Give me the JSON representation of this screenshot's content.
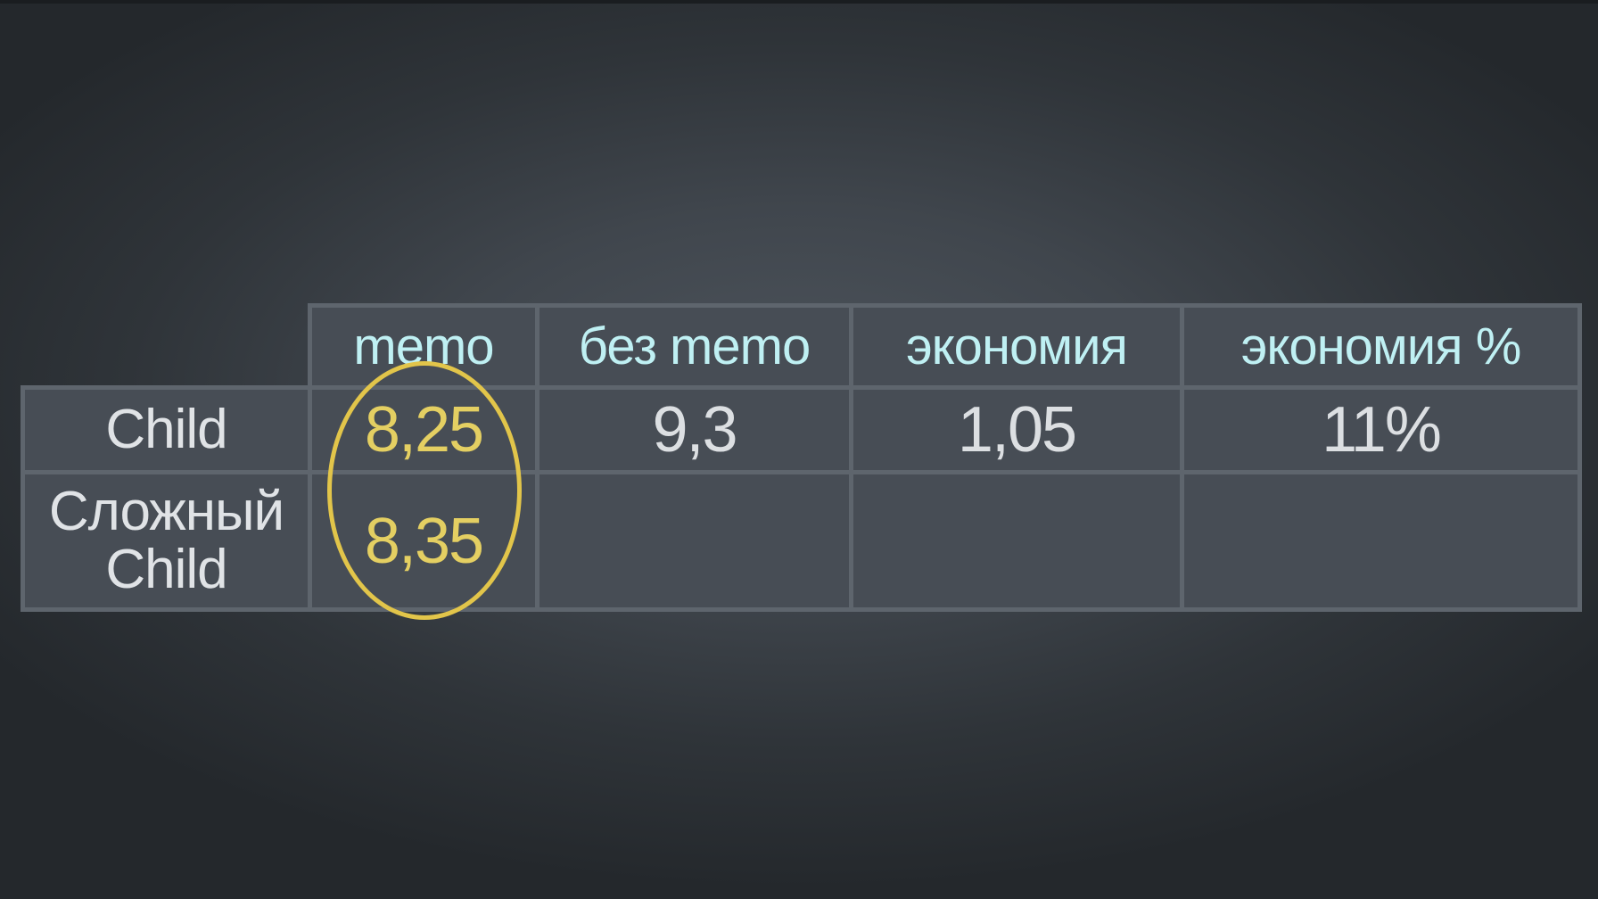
{
  "table": {
    "columns": [
      "memo",
      "без memo",
      "экономия",
      "экономия %"
    ],
    "rows": [
      {
        "label": "Child",
        "cells": [
          "8,25",
          "9,3",
          "1,05",
          "11%"
        ]
      },
      {
        "label": "Сложный Child",
        "cells": [
          "8,35",
          "",
          "",
          ""
        ]
      }
    ]
  },
  "highlight": {
    "column": "memo",
    "color": "#e2c54a"
  },
  "colors": {
    "header_text": "#bff0f3",
    "highlight_text": "#e4cf62",
    "value_text": "#dcdfe2",
    "cell_fill": "#474d55",
    "grid_line": "#5e656d"
  }
}
